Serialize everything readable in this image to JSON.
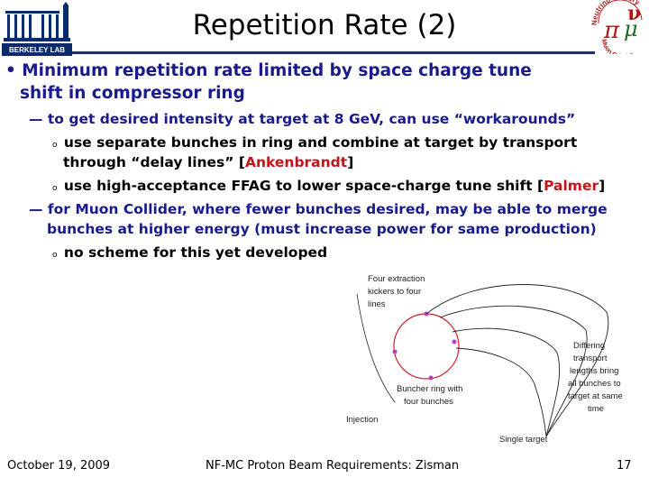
{
  "header": {
    "title": "Repetition Rate (2)",
    "left_logo_text": "BERKELEY LAB",
    "right_logo_text_top": "Neutrino Factory",
    "right_logo_text_bottom": "Muon Collider"
  },
  "bullets": {
    "main_line1": "• Minimum repetition rate limited by space charge tune",
    "main_line2": "shift in compressor ring",
    "dash1": "— to get desired intensity at target at 8 GeV, can use “workarounds”",
    "sub1_bullet": "o",
    "sub1_line1": "use separate bunches in ring and combine at target by transport",
    "sub1_line2_pre": "through “delay lines” [",
    "sub1_name": "Ankenbrandt",
    "sub1_line2_post": "]",
    "sub2_bullet": "o",
    "sub2_pre": "use high-acceptance FFAG to lower space-charge tune shift [",
    "sub2_name": "Palmer",
    "sub2_post": "]",
    "dash2_line1": "— for Muon Collider, where fewer bunches desired, may be able to merge",
    "dash2_line2": "bunches at higher energy (must increase power for same production)",
    "sub3_bullet": "o",
    "sub3_text": "no scheme for this yet developed"
  },
  "diagram": {
    "label_extraction": [
      "Four extraction",
      "kickers to four",
      "lines"
    ],
    "label_transport": [
      "Differing",
      "transport",
      "lengths bring",
      "all bunches to",
      "target at same",
      "time"
    ],
    "label_ring": [
      "Buncher ring with",
      "four bunches"
    ],
    "label_injection": "Injection",
    "label_target": "Single target"
  },
  "footer": {
    "date": "October 19, 2009",
    "center": "NF-MC Proton Beam Requirements: Zisman",
    "page": "17"
  },
  "colors": {
    "accent_blue": "#1a1a8c",
    "highlight_red": "#c0161a",
    "rule": "#1d2a8a"
  }
}
